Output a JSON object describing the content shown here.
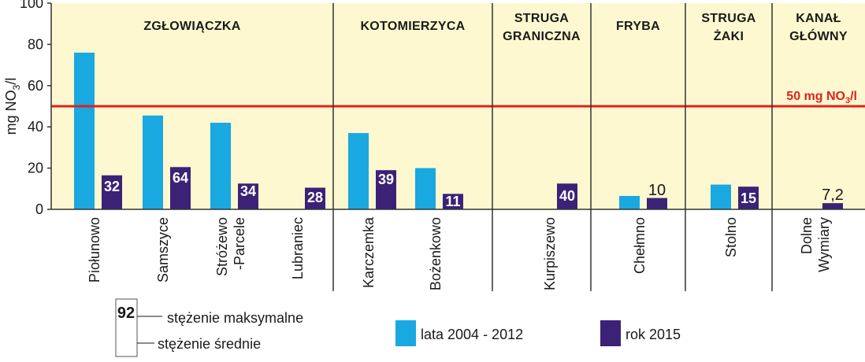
{
  "chart_data": {
    "type": "bar",
    "ylabel": "mg NO3/l",
    "ylabel_parts": {
      "prefix": "mg NO",
      "sub": "3",
      "suffix": "/l"
    },
    "ylim": [
      0,
      100
    ],
    "yticks": [
      0,
      20,
      40,
      60,
      80,
      100
    ],
    "grid": false,
    "background_color": "#fdf8cf",
    "river_groups": [
      {
        "name_lines": [
          "ZGŁOWIĄCZKA"
        ],
        "categories": 4
      },
      {
        "name_lines": [
          "KOTOMIERZYCA"
        ],
        "categories": 2
      },
      {
        "name_lines": [
          "STRUGA",
          "GRANICZNA"
        ],
        "categories": 1
      },
      {
        "name_lines": [
          "FRYBA"
        ],
        "categories": 1
      },
      {
        "name_lines": [
          "STRUGA",
          "ŻAKI"
        ],
        "categories": 1
      },
      {
        "name_lines": [
          "KANAŁ",
          "GŁÓWNY"
        ],
        "categories": 1
      }
    ],
    "categories": [
      {
        "lines": [
          "Piołunowo"
        ]
      },
      {
        "lines": [
          "Samszyce"
        ]
      },
      {
        "lines": [
          "Stróżewo",
          "-Parcele"
        ]
      },
      {
        "lines": [
          "Lubraniec"
        ]
      },
      {
        "lines": [
          "Karczemka"
        ]
      },
      {
        "lines": [
          "Bożenkowo"
        ]
      },
      {
        "lines": [
          "Kurpiszewo"
        ]
      },
      {
        "lines": [
          "Chełmno"
        ]
      },
      {
        "lines": [
          "Stolno"
        ]
      },
      {
        "lines": [
          "Dolne",
          "Wymiary"
        ]
      }
    ],
    "series": [
      {
        "name": "lata 2004 - 2012",
        "color": "#1aa8e0",
        "values": [
          76,
          45.5,
          42,
          null,
          37,
          20,
          null,
          6.5,
          12,
          null
        ]
      },
      {
        "name": "rok 2015",
        "color": "#3b2277",
        "values": [
          16.5,
          20.5,
          12.5,
          10.5,
          19,
          7.5,
          12.5,
          5.5,
          11,
          3
        ]
      }
    ],
    "max_labels": [
      "32",
      "64",
      "34",
      "28",
      "39",
      "11",
      "40",
      "10",
      "15",
      "7,2"
    ],
    "threshold": {
      "value": 50,
      "color": "#e02020",
      "label_parts": {
        "prefix": "50 mg NO",
        "sub": "3",
        "suffix": "/l"
      }
    },
    "legend": {
      "placement": "bottom",
      "items": [
        {
          "label": "lata 2004 - 2012",
          "color": "#1aa8e0"
        },
        {
          "label": "rok 2015",
          "color": "#3b2277"
        }
      ]
    },
    "key": {
      "sample_value": "92",
      "max_label": "stężenie maksymalne",
      "avg_label": "stężenie średnie"
    }
  }
}
